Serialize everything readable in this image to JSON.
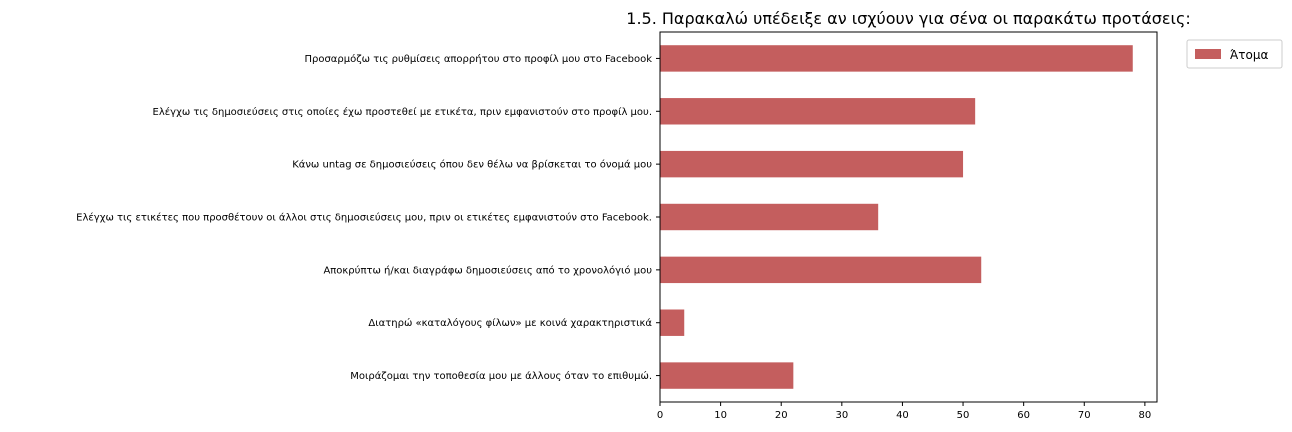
{
  "chart_data": {
    "type": "bar",
    "orientation": "horizontal",
    "title": "1.5. Παρακαλώ υπέδειξε αν ισχύουν για σένα οι παρακάτω προτάσεις:",
    "xlabel": "",
    "ylabel": "",
    "categories": [
      "Προσαρμόζω τις ρυθμίσεις απορρήτου στο προφίλ μου στο Facebook",
      "Ελέγχω τις δημοσιεύσεις στις οποίες έχω προστεθεί με ετικέτα, πριν εμφανιστούν στο προφίλ μου.",
      "Κάνω untag σε δημοσιεύσεις όπου δεν θέλω να βρίσκεται το όνομά μου",
      "Ελέγχω τις ετικέτες που προσθέτουν οι άλλοι στις δημοσιεύσεις μου, πριν οι ετικέτες εμφανιστούν στο Facebook.",
      "Αποκρύπτω ή/και διαγράφω δημοσιεύσεις από το χρονολόγιό μου",
      "Διατηρώ «καταλόγους φίλων» με κοινά χαρακτηριστικά",
      "Μοιράζομαι την τοποθεσία μου με άλλους όταν το επιθυμώ."
    ],
    "series": [
      {
        "name": "Άτομα",
        "values": [
          78,
          52,
          50,
          36,
          53,
          4,
          22
        ],
        "color": "#c45e5e"
      }
    ],
    "xlim": [
      0,
      82
    ],
    "xticks": [
      0,
      10,
      20,
      30,
      40,
      50,
      60,
      70,
      80
    ],
    "grid": false,
    "legend_position": "outside-top-right"
  }
}
